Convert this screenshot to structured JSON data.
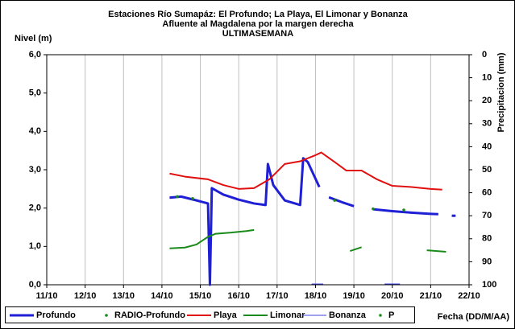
{
  "chart_data": {
    "type": "line",
    "title": [
      "Estaciones Río Sumapáz: El Profundo; La Playa, El Limonar y Bonanza",
      "Afluente al Magdalena por la margen derecha",
      "ULTIMASEMANA"
    ],
    "ylabel": "Nivel (m)",
    "y2label": "Precipitacion (mm)",
    "xlabel": "Fecha (DD/M/AA)",
    "xlim": [
      11,
      22
    ],
    "xticks": [
      {
        "value": 11,
        "label": "11/10"
      },
      {
        "value": 12,
        "label": "12/10"
      },
      {
        "value": 13,
        "label": "13/10"
      },
      {
        "value": 14,
        "label": "14/10"
      },
      {
        "value": 15,
        "label": "15/10"
      },
      {
        "value": 16,
        "label": "16/10"
      },
      {
        "value": 17,
        "label": "17/10"
      },
      {
        "value": 18,
        "label": "18/10"
      },
      {
        "value": 19,
        "label": "19/10"
      },
      {
        "value": 20,
        "label": "20/10"
      },
      {
        "value": 21,
        "label": "21/10"
      },
      {
        "value": 22,
        "label": "22/10"
      }
    ],
    "ylim": [
      0,
      6
    ],
    "yticks": [
      {
        "value": 0,
        "label": "0,0"
      },
      {
        "value": 1,
        "label": "1,0"
      },
      {
        "value": 2,
        "label": "2,0"
      },
      {
        "value": 3,
        "label": "3,0"
      },
      {
        "value": 4,
        "label": "4,0"
      },
      {
        "value": 5,
        "label": "5,0"
      },
      {
        "value": 6,
        "label": "6,0"
      }
    ],
    "y2lim": [
      100,
      0
    ],
    "y2ticks": [
      0,
      10,
      20,
      30,
      40,
      50,
      60,
      70,
      80,
      90,
      100
    ],
    "grid": "x",
    "series": [
      {
        "name": "Profundo",
        "color": "#1f1fd6",
        "marker": "line",
        "width": 3,
        "x": [
          14.2,
          14.5,
          14.9,
          15.2,
          15.25,
          15.3,
          15.6,
          16.0,
          16.4,
          16.7,
          16.76,
          16.9,
          17.2,
          17.6,
          17.68,
          17.8,
          18.1,
          18.2,
          18.35,
          18.7,
          19.0,
          19.2,
          19.5,
          20.0,
          20.5,
          21.0,
          21.2,
          21.3,
          21.55,
          21.65
        ],
        "values": [
          2.27,
          2.3,
          2.2,
          2.12,
          0.0,
          2.52,
          2.35,
          2.22,
          2.12,
          2.08,
          3.15,
          2.6,
          2.2,
          2.08,
          3.3,
          3.2,
          2.55,
          null,
          2.28,
          2.15,
          2.05,
          null,
          1.97,
          1.92,
          1.88,
          1.85,
          1.84,
          null,
          1.8,
          1.8
        ]
      },
      {
        "name": "RADIO-Profundo",
        "color": "#1a8a1a",
        "marker": "dot",
        "x": [
          14.4,
          14.8,
          18.5,
          19.5
        ],
        "values": [
          2.3,
          2.25,
          2.2,
          1.98
        ]
      },
      {
        "name": "Playa",
        "color": "#e01010",
        "marker": "line",
        "width": 2,
        "x": [
          14.2,
          14.6,
          15.2,
          15.6,
          16.0,
          16.4,
          16.8,
          17.2,
          17.6,
          18.0,
          18.15,
          18.5,
          18.8,
          19.2,
          19.6,
          20.0,
          20.5,
          21.0,
          21.3
        ],
        "values": [
          2.9,
          2.82,
          2.75,
          2.6,
          2.5,
          2.52,
          2.75,
          3.15,
          3.22,
          3.38,
          3.45,
          3.2,
          2.98,
          2.98,
          2.75,
          2.58,
          2.55,
          2.5,
          2.48
        ]
      },
      {
        "name": "Limonar",
        "color": "#1a8a1a",
        "marker": "line",
        "width": 2,
        "x": [
          14.2,
          14.6,
          14.9,
          15.2,
          15.4,
          15.8,
          16.2,
          16.4,
          18.6,
          18.9,
          19.2,
          20.7,
          20.9,
          21.4
        ],
        "values": [
          0.95,
          0.97,
          1.05,
          1.25,
          1.33,
          1.36,
          1.4,
          1.43,
          null,
          0.88,
          0.98,
          null,
          0.9,
          0.86
        ]
      },
      {
        "name": "Bonanza",
        "color": "#4040e0",
        "marker": "line",
        "width": 1,
        "x": [
          17.9,
          18.2,
          19.0,
          19.8,
          20.2
        ],
        "values": [
          0.02,
          0.02,
          null,
          0.02,
          0.02
        ]
      },
      {
        "name": "P",
        "color": "#1a8a1a",
        "marker": "dot",
        "x": [
          20.3
        ],
        "values": [
          1.95
        ]
      }
    ]
  }
}
